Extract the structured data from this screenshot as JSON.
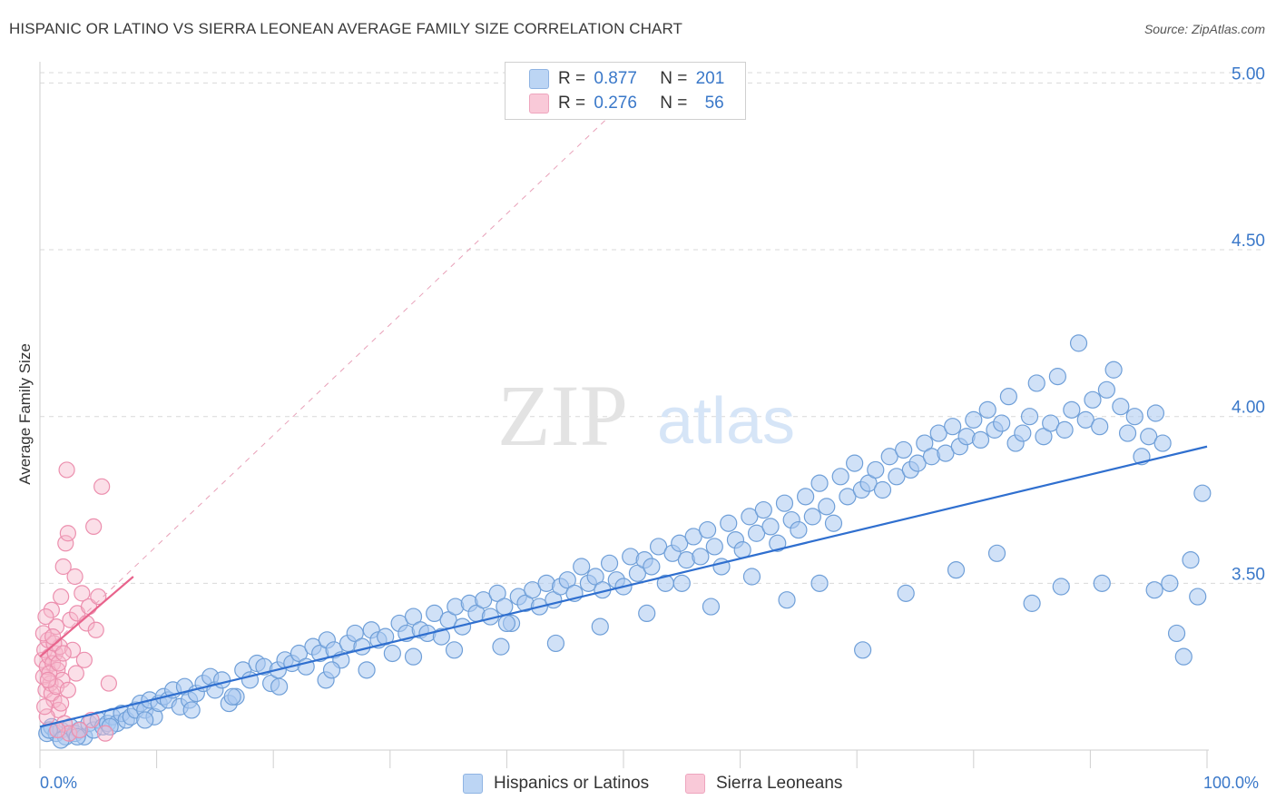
{
  "title": "HISPANIC OR LATINO VS SIERRA LEONEAN AVERAGE FAMILY SIZE CORRELATION CHART",
  "source": "Source: ZipAtlas.com",
  "watermark": {
    "zip": "ZIP",
    "atlas": "atlas"
  },
  "colors": {
    "blue_fill": "#a9c8f0",
    "blue_stroke": "#6f9fd8",
    "blue_line": "#2f6fcf",
    "pink_fill": "#f7b8cc",
    "pink_stroke": "#ec8fae",
    "pink_line": "#e8638c",
    "axis_label": "#3a78c9",
    "grid": "#d9d9d9"
  },
  "legend": {
    "r_label": "R =",
    "n_label": "N =",
    "rows": [
      {
        "r": "0.877",
        "n": "201",
        "color": "blue"
      },
      {
        "r": "0.276",
        "n": "56",
        "color": "pink"
      }
    ]
  },
  "chart_data": {
    "type": "scatter",
    "title": "HISPANIC OR LATINO VS SIERRA LEONEAN AVERAGE FAMILY SIZE CORRELATION CHART",
    "xlabel": "",
    "ylabel": "Average Family Size",
    "xlim": [
      0,
      100
    ],
    "ylim": [
      3.0,
      5.08
    ],
    "x_tick_labels": [
      "0.0%",
      "100.0%"
    ],
    "y_ticks": [
      3.5,
      4.0,
      4.5,
      5.0
    ],
    "y_tick_labels": [
      "3.50",
      "4.00",
      "4.50",
      "5.00"
    ],
    "grid": true,
    "legend_position": "bottom",
    "series": [
      {
        "name": "Hispanics or Latinos",
        "color": "blue",
        "trend": {
          "x": [
            0,
            100
          ],
          "y": [
            3.07,
            3.91
          ]
        },
        "points": [
          [
            0.6,
            3.05
          ],
          [
            1.0,
            3.07
          ],
          [
            1.4,
            3.05
          ],
          [
            1.8,
            3.06
          ],
          [
            2.2,
            3.04
          ],
          [
            2.6,
            3.07
          ],
          [
            3.0,
            3.05
          ],
          [
            3.4,
            3.06
          ],
          [
            3.8,
            3.04
          ],
          [
            4.2,
            3.08
          ],
          [
            4.6,
            3.06
          ],
          [
            5.0,
            3.09
          ],
          [
            5.4,
            3.07
          ],
          [
            5.8,
            3.08
          ],
          [
            6.2,
            3.1
          ],
          [
            6.6,
            3.08
          ],
          [
            7.0,
            3.11
          ],
          [
            7.4,
            3.09
          ],
          [
            7.8,
            3.1
          ],
          [
            8.2,
            3.12
          ],
          [
            8.6,
            3.14
          ],
          [
            9.0,
            3.12
          ],
          [
            9.4,
            3.15
          ],
          [
            9.8,
            3.1
          ],
          [
            10.2,
            3.14
          ],
          [
            10.6,
            3.16
          ],
          [
            11.0,
            3.15
          ],
          [
            11.4,
            3.18
          ],
          [
            12.0,
            3.13
          ],
          [
            12.4,
            3.19
          ],
          [
            12.8,
            3.15
          ],
          [
            13.4,
            3.17
          ],
          [
            14.0,
            3.2
          ],
          [
            14.6,
            3.22
          ],
          [
            15.0,
            3.18
          ],
          [
            15.6,
            3.21
          ],
          [
            16.2,
            3.14
          ],
          [
            16.8,
            3.16
          ],
          [
            17.4,
            3.24
          ],
          [
            18.0,
            3.21
          ],
          [
            18.6,
            3.26
          ],
          [
            19.2,
            3.25
          ],
          [
            19.8,
            3.2
          ],
          [
            20.4,
            3.24
          ],
          [
            21.0,
            3.27
          ],
          [
            21.6,
            3.26
          ],
          [
            22.2,
            3.29
          ],
          [
            22.8,
            3.25
          ],
          [
            23.4,
            3.31
          ],
          [
            24.0,
            3.29
          ],
          [
            24.6,
            3.33
          ],
          [
            25.2,
            3.3
          ],
          [
            25.8,
            3.27
          ],
          [
            26.4,
            3.32
          ],
          [
            27.0,
            3.35
          ],
          [
            27.6,
            3.31
          ],
          [
            28.4,
            3.36
          ],
          [
            29.0,
            3.33
          ],
          [
            29.6,
            3.34
          ],
          [
            30.2,
            3.29
          ],
          [
            30.8,
            3.38
          ],
          [
            31.4,
            3.35
          ],
          [
            32.0,
            3.4
          ],
          [
            32.6,
            3.36
          ],
          [
            33.2,
            3.35
          ],
          [
            33.8,
            3.41
          ],
          [
            34.4,
            3.34
          ],
          [
            35.0,
            3.39
          ],
          [
            35.6,
            3.43
          ],
          [
            36.2,
            3.37
          ],
          [
            36.8,
            3.44
          ],
          [
            37.4,
            3.41
          ],
          [
            38.0,
            3.45
          ],
          [
            38.6,
            3.4
          ],
          [
            39.2,
            3.47
          ],
          [
            39.8,
            3.43
          ],
          [
            40.4,
            3.38
          ],
          [
            41.0,
            3.46
          ],
          [
            41.6,
            3.44
          ],
          [
            42.2,
            3.48
          ],
          [
            42.8,
            3.43
          ],
          [
            43.4,
            3.5
          ],
          [
            44.0,
            3.45
          ],
          [
            44.6,
            3.49
          ],
          [
            45.2,
            3.51
          ],
          [
            45.8,
            3.47
          ],
          [
            46.4,
            3.55
          ],
          [
            47.0,
            3.5
          ],
          [
            47.6,
            3.52
          ],
          [
            48.2,
            3.48
          ],
          [
            48.8,
            3.56
          ],
          [
            49.4,
            3.51
          ],
          [
            50.0,
            3.49
          ],
          [
            50.6,
            3.58
          ],
          [
            51.2,
            3.53
          ],
          [
            51.8,
            3.57
          ],
          [
            52.4,
            3.55
          ],
          [
            53.0,
            3.61
          ],
          [
            53.6,
            3.5
          ],
          [
            54.2,
            3.59
          ],
          [
            54.8,
            3.62
          ],
          [
            55.4,
            3.57
          ],
          [
            56.0,
            3.64
          ],
          [
            56.6,
            3.58
          ],
          [
            57.2,
            3.66
          ],
          [
            57.8,
            3.61
          ],
          [
            58.4,
            3.55
          ],
          [
            59.0,
            3.68
          ],
          [
            59.6,
            3.63
          ],
          [
            60.2,
            3.6
          ],
          [
            60.8,
            3.7
          ],
          [
            61.4,
            3.65
          ],
          [
            62.0,
            3.72
          ],
          [
            62.6,
            3.67
          ],
          [
            63.2,
            3.62
          ],
          [
            63.8,
            3.74
          ],
          [
            64.4,
            3.69
          ],
          [
            65.0,
            3.66
          ],
          [
            65.6,
            3.76
          ],
          [
            66.2,
            3.7
          ],
          [
            66.8,
            3.8
          ],
          [
            67.4,
            3.73
          ],
          [
            68.0,
            3.68
          ],
          [
            68.6,
            3.82
          ],
          [
            69.2,
            3.76
          ],
          [
            69.8,
            3.86
          ],
          [
            70.4,
            3.78
          ],
          [
            71.0,
            3.8
          ],
          [
            71.6,
            3.84
          ],
          [
            72.2,
            3.78
          ],
          [
            72.8,
            3.88
          ],
          [
            73.4,
            3.82
          ],
          [
            74.0,
            3.9
          ],
          [
            74.6,
            3.84
          ],
          [
            75.2,
            3.86
          ],
          [
            75.8,
            3.92
          ],
          [
            76.4,
            3.88
          ],
          [
            77.0,
            3.95
          ],
          [
            77.6,
            3.89
          ],
          [
            78.2,
            3.97
          ],
          [
            78.8,
            3.91
          ],
          [
            79.4,
            3.94
          ],
          [
            80.0,
            3.99
          ],
          [
            80.6,
            3.93
          ],
          [
            81.2,
            4.02
          ],
          [
            81.8,
            3.96
          ],
          [
            82.4,
            3.98
          ],
          [
            83.0,
            4.06
          ],
          [
            83.6,
            3.92
          ],
          [
            84.2,
            3.95
          ],
          [
            84.8,
            4.0
          ],
          [
            85.4,
            4.1
          ],
          [
            86.0,
            3.94
          ],
          [
            86.6,
            3.98
          ],
          [
            87.2,
            4.12
          ],
          [
            87.8,
            3.96
          ],
          [
            88.4,
            4.02
          ],
          [
            89.0,
            4.22
          ],
          [
            89.6,
            3.99
          ],
          [
            90.2,
            4.05
          ],
          [
            90.8,
            3.97
          ],
          [
            91.4,
            4.08
          ],
          [
            92.0,
            4.14
          ],
          [
            92.6,
            4.03
          ],
          [
            93.2,
            3.95
          ],
          [
            93.8,
            4.0
          ],
          [
            94.4,
            3.88
          ],
          [
            95.0,
            3.94
          ],
          [
            95.6,
            4.01
          ],
          [
            96.2,
            3.92
          ],
          [
            96.8,
            3.5
          ],
          [
            97.4,
            3.35
          ],
          [
            98.0,
            3.28
          ],
          [
            98.6,
            3.57
          ],
          [
            99.2,
            3.46
          ],
          [
            99.6,
            3.77
          ],
          [
            70.5,
            3.3
          ],
          [
            74.2,
            3.47
          ],
          [
            78.5,
            3.54
          ],
          [
            82.0,
            3.59
          ],
          [
            85.0,
            3.44
          ],
          [
            87.5,
            3.49
          ],
          [
            91.0,
            3.5
          ],
          [
            95.5,
            3.48
          ],
          [
            64.0,
            3.45
          ],
          [
            66.8,
            3.5
          ],
          [
            61.0,
            3.52
          ],
          [
            57.5,
            3.43
          ],
          [
            52.0,
            3.41
          ],
          [
            48.0,
            3.37
          ],
          [
            44.2,
            3.32
          ],
          [
            39.5,
            3.31
          ],
          [
            35.5,
            3.3
          ],
          [
            32.0,
            3.28
          ],
          [
            28.0,
            3.24
          ],
          [
            24.5,
            3.21
          ],
          [
            20.5,
            3.19
          ],
          [
            16.5,
            3.16
          ],
          [
            13.0,
            3.12
          ],
          [
            9.0,
            3.09
          ],
          [
            6.0,
            3.07
          ],
          [
            3.2,
            3.04
          ],
          [
            1.8,
            3.03
          ],
          [
            0.8,
            3.06
          ],
          [
            25.0,
            3.24
          ],
          [
            40.0,
            3.38
          ],
          [
            55.0,
            3.5
          ]
        ]
      },
      {
        "name": "Sierra Leoneans",
        "color": "pink",
        "trend": {
          "x": [
            0,
            8
          ],
          "y": [
            3.28,
            3.52
          ]
        },
        "trend_extended": {
          "x": [
            0,
            50
          ],
          "y": [
            3.28,
            4.94
          ]
        },
        "points": [
          [
            0.2,
            3.27
          ],
          [
            0.3,
            3.22
          ],
          [
            0.4,
            3.3
          ],
          [
            0.5,
            3.18
          ],
          [
            0.6,
            3.25
          ],
          [
            0.7,
            3.33
          ],
          [
            0.8,
            3.28
          ],
          [
            0.9,
            3.2
          ],
          [
            1.0,
            3.42
          ],
          [
            1.1,
            3.26
          ],
          [
            1.2,
            3.15
          ],
          [
            1.3,
            3.29
          ],
          [
            1.4,
            3.37
          ],
          [
            1.5,
            3.24
          ],
          [
            1.6,
            3.12
          ],
          [
            1.7,
            3.31
          ],
          [
            1.8,
            3.46
          ],
          [
            1.9,
            3.21
          ],
          [
            2.0,
            3.55
          ],
          [
            2.1,
            3.08
          ],
          [
            2.2,
            3.62
          ],
          [
            2.3,
            3.84
          ],
          [
            2.4,
            3.65
          ],
          [
            2.5,
            3.05
          ],
          [
            2.6,
            3.39
          ],
          [
            2.8,
            3.3
          ],
          [
            3.0,
            3.52
          ],
          [
            3.2,
            3.41
          ],
          [
            3.4,
            3.06
          ],
          [
            3.6,
            3.47
          ],
          [
            3.8,
            3.27
          ],
          [
            4.0,
            3.38
          ],
          [
            4.2,
            3.43
          ],
          [
            4.4,
            3.09
          ],
          [
            4.6,
            3.67
          ],
          [
            4.8,
            3.36
          ],
          [
            5.0,
            3.46
          ],
          [
            5.3,
            3.79
          ],
          [
            5.6,
            3.05
          ],
          [
            5.9,
            3.2
          ],
          [
            0.3,
            3.35
          ],
          [
            0.5,
            3.4
          ],
          [
            0.6,
            3.1
          ],
          [
            0.8,
            3.23
          ],
          [
            1.0,
            3.17
          ],
          [
            1.2,
            3.32
          ],
          [
            1.4,
            3.19
          ],
          [
            1.6,
            3.26
          ],
          [
            1.8,
            3.14
          ],
          [
            2.0,
            3.29
          ],
          [
            0.4,
            3.13
          ],
          [
            0.7,
            3.21
          ],
          [
            1.1,
            3.34
          ],
          [
            1.5,
            3.06
          ],
          [
            2.4,
            3.18
          ],
          [
            3.1,
            3.23
          ]
        ]
      }
    ]
  },
  "bottom_legend": [
    "Hispanics or Latinos",
    "Sierra Leoneans"
  ]
}
